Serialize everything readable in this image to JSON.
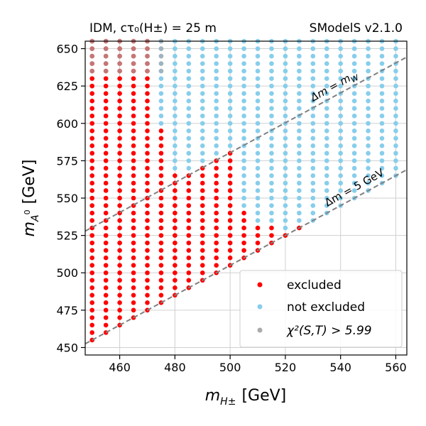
{
  "chart_data": {
    "type": "scatter",
    "title_left": "IDM, cτ₀(H±) = 25 m",
    "title_right": "SModelS v2.1.0",
    "xlabel": "m_{H^±} [GeV]",
    "ylabel": "m_{A^0} [GeV]",
    "xlabel_main": "m",
    "xlabel_sub": "H±",
    "xlabel_unit": "[GeV]",
    "ylabel_main": "m",
    "ylabel_sub": "A",
    "ylabel_sup": "0",
    "ylabel_unit": "[GeV]",
    "xlim": [
      447.5,
      564
    ],
    "ylim": [
      445,
      655
    ],
    "xticks": [
      460,
      480,
      500,
      520,
      540,
      560
    ],
    "yticks": [
      450,
      475,
      500,
      525,
      550,
      575,
      600,
      625,
      650
    ],
    "grid": true,
    "legend_position": "bottom-right",
    "colors": {
      "excluded": "#ff0000",
      "not_excluded": "#87ceeb",
      "chi2": "#aaaaaa",
      "dashed_lines": "#808080"
    },
    "series": [
      {
        "name": "excluded",
        "color": "#ff0000"
      },
      {
        "name": "not excluded",
        "color": "#87ceeb"
      },
      {
        "name": "χ²(S,T) > 5.99",
        "color": "#aaaaaa"
      }
    ],
    "legend": [
      {
        "label": "excluded",
        "color": "#ff0000"
      },
      {
        "label": "not excluded",
        "color": "#87ceeb"
      },
      {
        "label": "χ²(S,T) > 5.99",
        "color": "#aaaaaa"
      }
    ],
    "grid_spec": {
      "x_start": 450,
      "x_step": 5,
      "x_count": 23,
      "y_step": 5,
      "y_max": 655,
      "row_start_offset": 5,
      "diagonal_intercept": 5
    },
    "region_rules": {
      "chi2_overlay_x_max": 475,
      "chi2_overlay_y_min": 635,
      "excluded_boundary": [
        {
          "x": 450,
          "y_max": 655
        },
        {
          "x": 455,
          "y_max": 655
        },
        {
          "x": 460,
          "y_max": 655
        },
        {
          "x": 465,
          "y_max": 655
        },
        {
          "x": 470,
          "y_max": 655
        },
        {
          "x": 475,
          "y_max": 595
        },
        {
          "x": 480,
          "y_max": 565
        },
        {
          "x": 485,
          "y_max": 565
        },
        {
          "x": 490,
          "y_max": 570
        },
        {
          "x": 495,
          "y_max": 575
        },
        {
          "x": 500,
          "y_max": 580
        },
        {
          "x": 505,
          "y_max": 540
        },
        {
          "x": 510,
          "y_max": 530
        },
        {
          "x": 515,
          "y_max": 530
        },
        {
          "x": 520,
          "y_max": 525
        },
        {
          "x": 525,
          "y_max": 530
        },
        {
          "x": 530,
          "y_max": 530
        },
        {
          "x": 535,
          "y_max": 530
        },
        {
          "x": 540,
          "y_max": 0
        },
        {
          "x": 545,
          "y_max": 0
        },
        {
          "x": 550,
          "y_max": 0
        },
        {
          "x": 555,
          "y_max": 0
        },
        {
          "x": 560,
          "y_max": 0
        }
      ]
    },
    "annotations": [
      {
        "text": "Δm = m_W",
        "label_main": "Δm = m",
        "label_sub": "W",
        "line": {
          "slope": 1,
          "intercept": 80.4
        }
      },
      {
        "text": "Δm = 5 GeV",
        "label_main": "Δm = 5 GeV",
        "line": {
          "slope": 1,
          "intercept": 5
        }
      }
    ]
  }
}
